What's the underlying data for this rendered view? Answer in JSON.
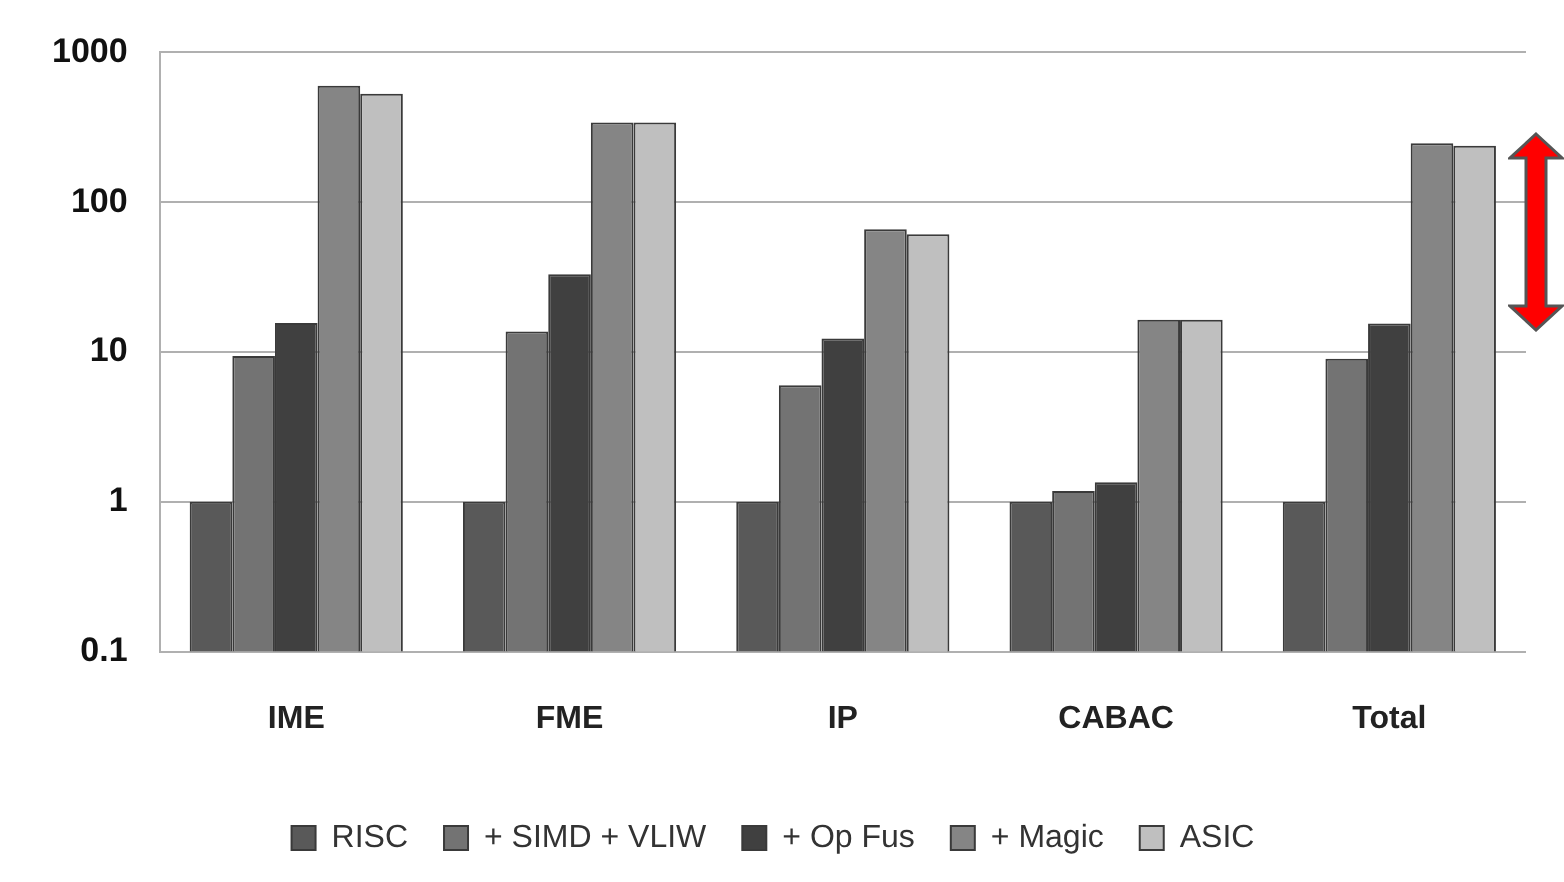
{
  "chart_data": {
    "type": "bar",
    "categories": [
      "IME",
      "FME",
      "IP",
      "CABAC",
      "Total"
    ],
    "series": [
      {
        "name": "RISC",
        "color": "#595959",
        "values": [
          1,
          1,
          1,
          1,
          1
        ]
      },
      {
        "name": "+ SIMD + VLIW",
        "color": "#737373",
        "values": [
          9.4,
          13.7,
          6,
          1.18,
          9
        ]
      },
      {
        "name": "+ Op Fus",
        "color": "#404040",
        "values": [
          15.6,
          33,
          12.3,
          1.35,
          15.5
        ]
      },
      {
        "name": "+ Magic",
        "color": "#858585",
        "values": [
          600,
          340,
          66,
          16.4,
          247
        ]
      },
      {
        "name": "ASIC",
        "color": "#bfbfbf",
        "values": [
          530,
          340,
          61,
          16.4,
          238
        ]
      }
    ],
    "log": true,
    "ylim": [
      0.1,
      1000
    ],
    "yticks": [
      0.1,
      1,
      10,
      100,
      1000
    ],
    "grid": "y",
    "legend": "bottom"
  }
}
